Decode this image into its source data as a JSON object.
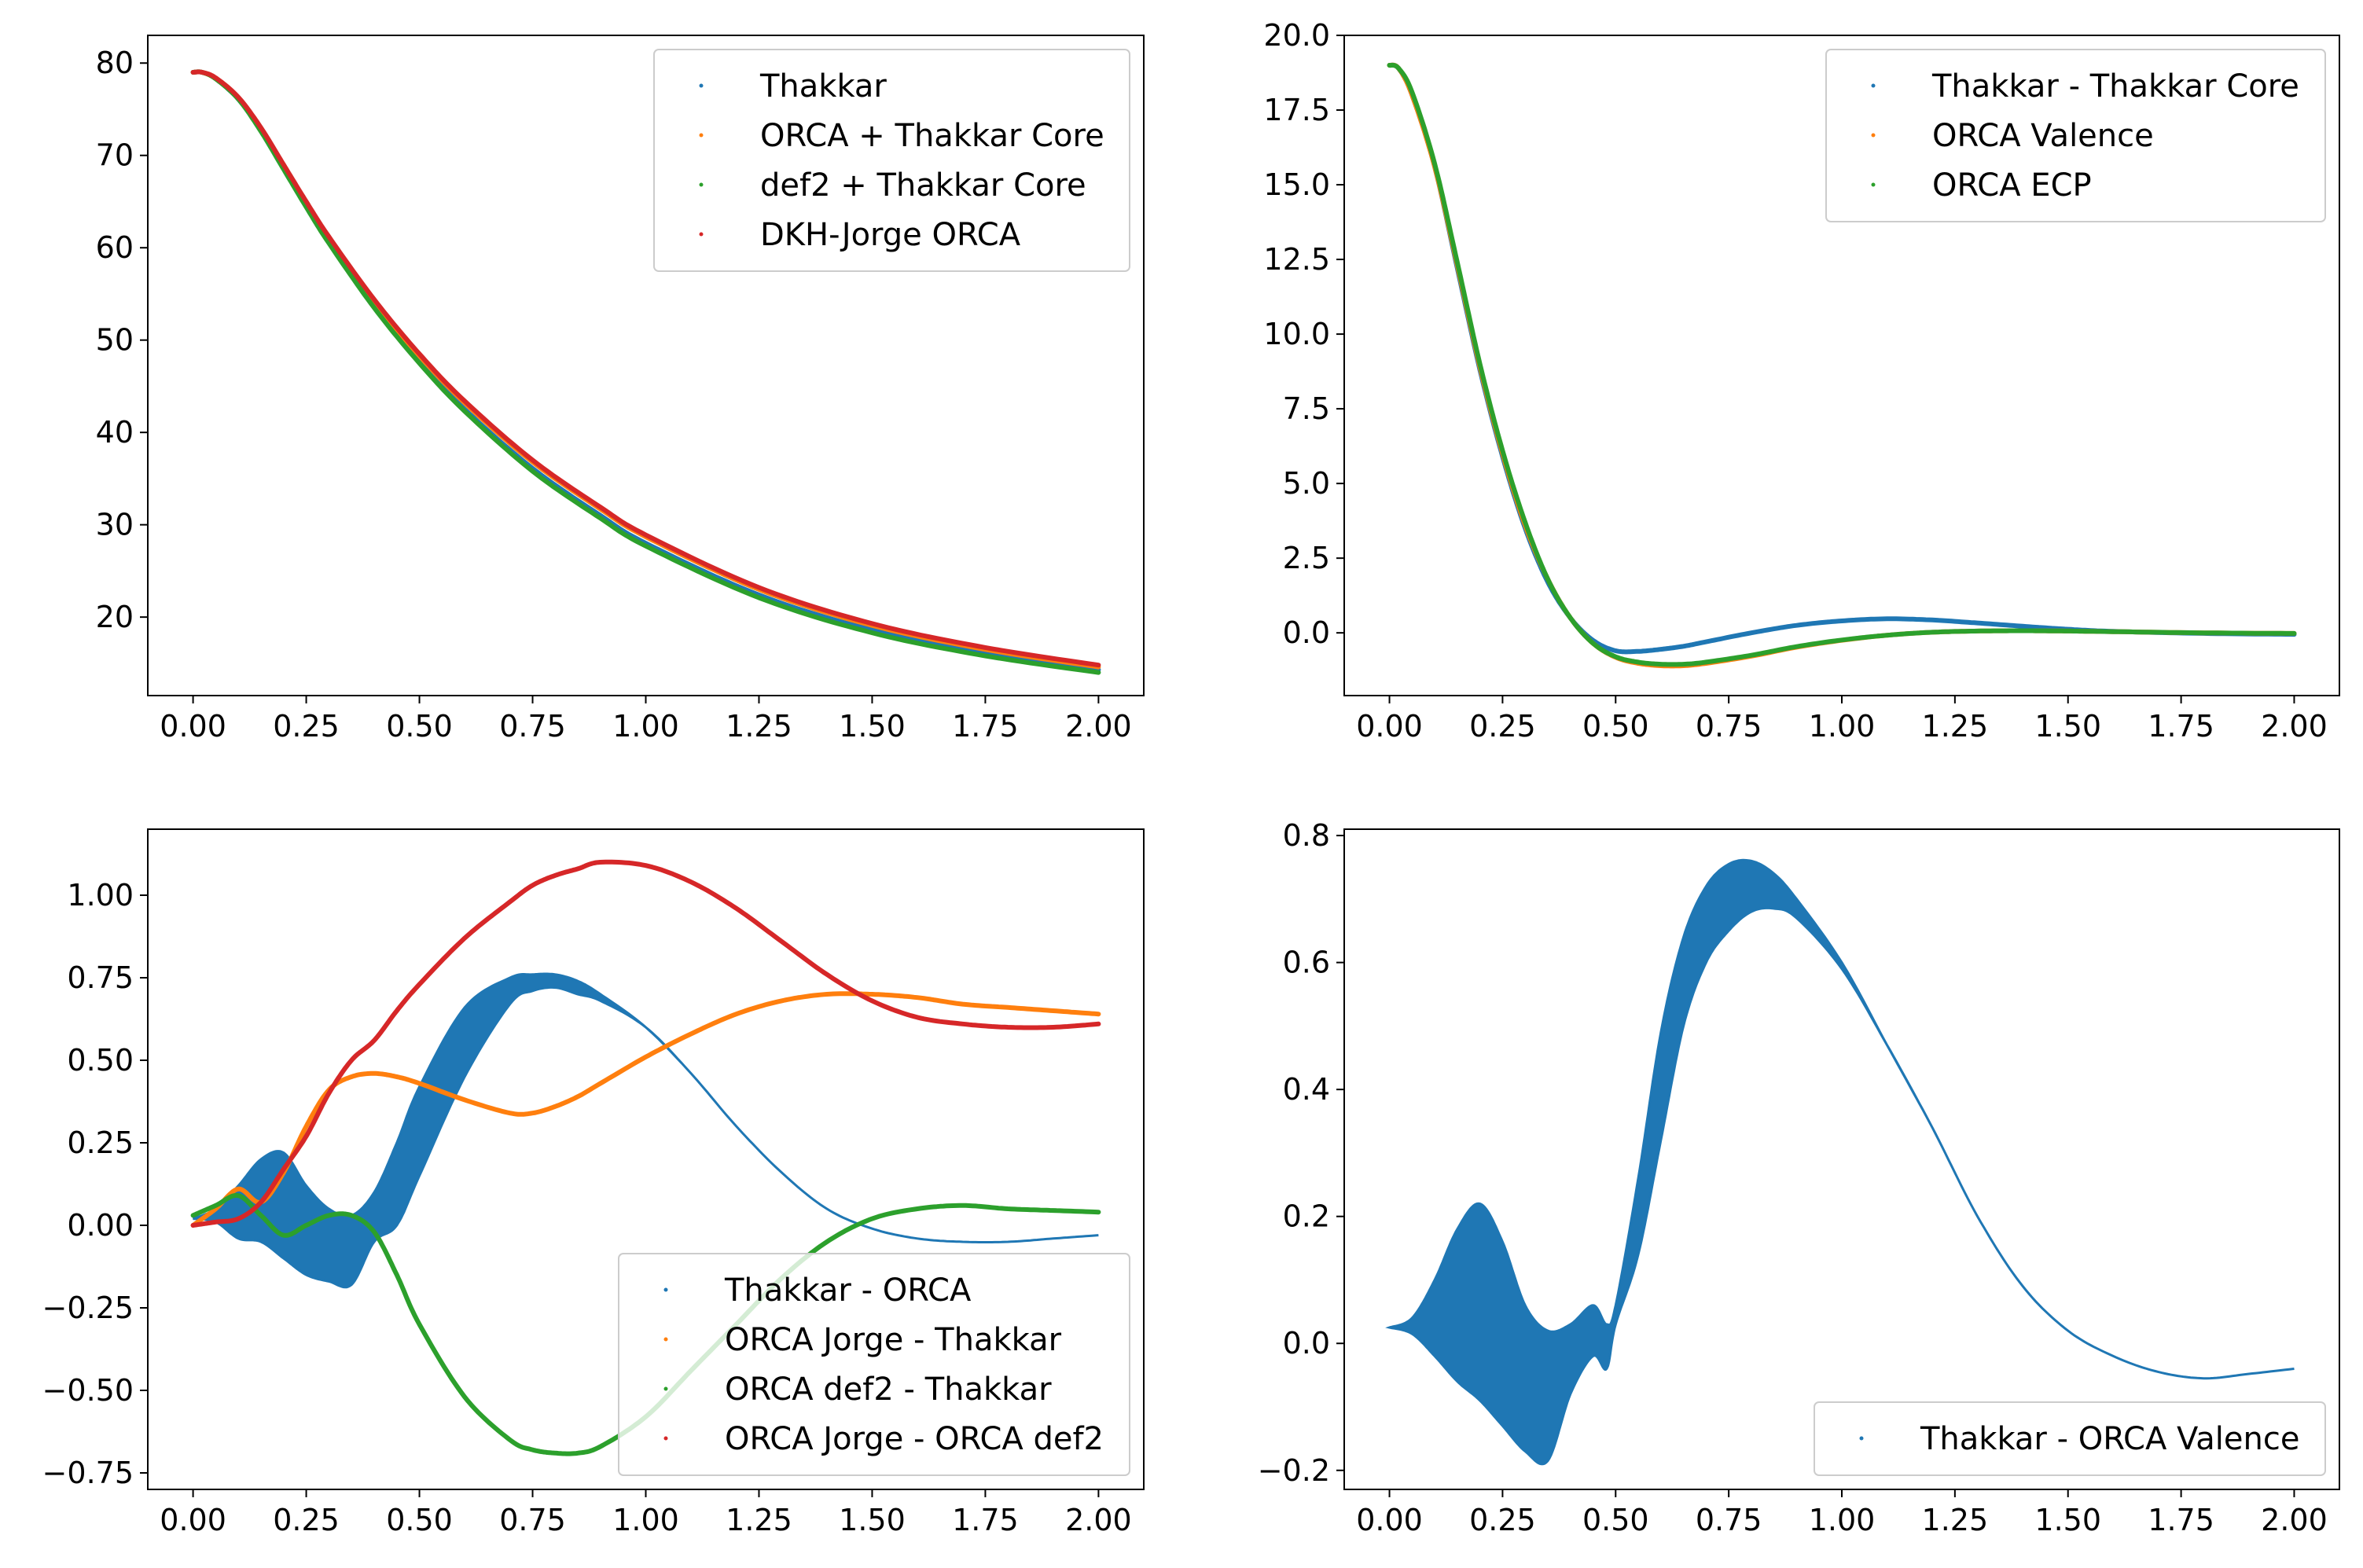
{
  "chart_data": [
    {
      "type": "scatter",
      "xlim": [
        -0.1,
        2.1
      ],
      "ylim": [
        11.5,
        83
      ],
      "xticks": [
        "0.00",
        "0.25",
        "0.50",
        "0.75",
        "1.00",
        "1.25",
        "1.50",
        "1.75",
        "2.00"
      ],
      "yticks": [
        20,
        30,
        40,
        50,
        60,
        70,
        80
      ],
      "ytick_labels": [
        "20",
        "30",
        "40",
        "50",
        "60",
        "70",
        "80"
      ],
      "legend_position": "upper right",
      "grid": false,
      "x": [
        0,
        0.02,
        0.05,
        0.1,
        0.15,
        0.2,
        0.25,
        0.3,
        0.4,
        0.5,
        0.6,
        0.75,
        0.9,
        1.0,
        1.25,
        1.5,
        1.75,
        2.0
      ],
      "series": [
        {
          "name": "Thakkar",
          "color": "#1f77b4",
          "values": [
            79,
            79,
            78.3,
            76.1,
            72.7,
            68.6,
            64.5,
            60.6,
            53.7,
            47.7,
            42.5,
            36.1,
            31.0,
            28.0,
            22.4,
            18.6,
            16.1,
            14.3
          ]
        },
        {
          "name": "ORCA + Thakkar Core",
          "color": "#ff7f0e",
          "values": [
            79,
            79,
            78.3,
            76.2,
            72.9,
            68.8,
            64.8,
            61.0,
            54.2,
            48.3,
            43.2,
            36.8,
            31.7,
            28.7,
            23.0,
            19.1,
            16.5,
            14.6
          ]
        },
        {
          "name": "def2 + Thakkar Core",
          "color": "#2ca02c",
          "values": [
            79,
            79,
            78.3,
            76.1,
            72.6,
            68.5,
            64.4,
            60.5,
            53.5,
            47.5,
            42.3,
            35.8,
            30.7,
            27.7,
            22.1,
            18.3,
            15.8,
            14.0
          ]
        },
        {
          "name": "DKH-Jorge ORCA",
          "color": "#d62728",
          "values": [
            79,
            79,
            78.4,
            76.3,
            73.0,
            69.0,
            65.0,
            61.2,
            54.4,
            48.5,
            43.4,
            37.0,
            31.9,
            28.9,
            23.2,
            19.3,
            16.7,
            14.8
          ]
        }
      ]
    },
    {
      "type": "scatter",
      "xlim": [
        -0.1,
        2.1
      ],
      "ylim": [
        -2.1,
        20
      ],
      "xticks": [
        "0.00",
        "0.25",
        "0.50",
        "0.75",
        "1.00",
        "1.25",
        "1.50",
        "1.75",
        "2.00"
      ],
      "yticks": [
        0,
        2.5,
        5,
        7.5,
        10,
        12.5,
        15,
        17.5,
        20
      ],
      "ytick_labels": [
        "0.0",
        "2.5",
        "5.0",
        "7.5",
        "10.0",
        "12.5",
        "15.0",
        "17.5",
        "20.0"
      ],
      "legend_position": "upper right",
      "grid": false,
      "x": [
        0,
        0.02,
        0.05,
        0.1,
        0.15,
        0.2,
        0.25,
        0.3,
        0.35,
        0.4,
        0.45,
        0.5,
        0.55,
        0.6,
        0.65,
        0.7,
        0.8,
        0.9,
        1.0,
        1.1,
        1.2,
        1.3,
        1.4,
        1.5,
        1.6,
        1.8,
        2.0
      ],
      "series": [
        {
          "name": "Thakkar - Thakkar Core",
          "color": "#1f77b4",
          "values": [
            19,
            18.9,
            18.0,
            15.6,
            12.2,
            8.8,
            5.9,
            3.5,
            1.7,
            0.5,
            -0.25,
            -0.6,
            -0.62,
            -0.55,
            -0.45,
            -0.3,
            0.0,
            0.25,
            0.4,
            0.47,
            0.43,
            0.33,
            0.22,
            0.12,
            0.05,
            -0.02,
            -0.05
          ]
        },
        {
          "name": "ORCA Valence",
          "color": "#ff7f0e",
          "values": [
            19,
            18.9,
            18.0,
            15.6,
            12.3,
            8.9,
            6.0,
            3.6,
            1.8,
            0.5,
            -0.35,
            -0.82,
            -1.02,
            -1.1,
            -1.1,
            -1.02,
            -0.78,
            -0.48,
            -0.25,
            -0.08,
            0.02,
            0.06,
            0.07,
            0.06,
            0.04,
            0.0,
            -0.02
          ]
        },
        {
          "name": "ORCA ECP",
          "color": "#2ca02c",
          "values": [
            19,
            18.9,
            18.1,
            15.7,
            12.4,
            9.0,
            6.1,
            3.7,
            1.8,
            0.5,
            -0.35,
            -0.8,
            -0.98,
            -1.05,
            -1.05,
            -0.98,
            -0.75,
            -0.46,
            -0.24,
            -0.08,
            0.02,
            0.06,
            0.07,
            0.06,
            0.04,
            0.0,
            -0.02
          ]
        }
      ]
    },
    {
      "type": "scatter",
      "xlim": [
        -0.1,
        2.1
      ],
      "ylim": [
        -0.8,
        1.2
      ],
      "xticks": [
        "0.00",
        "0.25",
        "0.50",
        "0.75",
        "1.00",
        "1.25",
        "1.50",
        "1.75",
        "2.00"
      ],
      "yticks": [
        -0.75,
        -0.5,
        -0.25,
        0,
        0.25,
        0.5,
        0.75,
        1.0
      ],
      "ytick_labels": [
        "−0.75",
        "−0.50",
        "−0.25",
        "0.00",
        "0.25",
        "0.50",
        "0.75",
        "1.00"
      ],
      "legend_position": "lower right",
      "grid": false,
      "x": [
        0,
        0.05,
        0.1,
        0.15,
        0.2,
        0.25,
        0.3,
        0.35,
        0.4,
        0.45,
        0.5,
        0.6,
        0.7,
        0.75,
        0.8,
        0.85,
        0.9,
        1.0,
        1.1,
        1.2,
        1.3,
        1.4,
        1.5,
        1.6,
        1.7,
        1.8,
        1.9,
        2.0
      ],
      "series": [
        {
          "name": "Thakkar - ORCA",
          "color": "#1f77b4",
          "band": true,
          "lower": [
            0.02,
            0.01,
            -0.04,
            -0.05,
            -0.1,
            -0.15,
            -0.17,
            -0.18,
            -0.05,
            0.0,
            0.15,
            0.45,
            0.67,
            0.71,
            0.72,
            0.7,
            0.68,
            0.6,
            0.46,
            0.3,
            0.16,
            0.05,
            -0.01,
            -0.04,
            -0.05,
            -0.05,
            -0.04,
            -0.03
          ],
          "upper": [
            0.02,
            0.05,
            0.12,
            0.2,
            0.22,
            0.12,
            0.05,
            0.03,
            0.1,
            0.25,
            0.42,
            0.66,
            0.75,
            0.76,
            0.76,
            0.74,
            0.7,
            0.6,
            0.46,
            0.3,
            0.16,
            0.05,
            -0.01,
            -0.04,
            -0.05,
            -0.05,
            -0.04,
            -0.03
          ]
        },
        {
          "name": "ORCA Jorge - Thakkar",
          "color": "#ff7f0e",
          "values": [
            0,
            0.05,
            0.11,
            0.07,
            0.16,
            0.3,
            0.41,
            0.45,
            0.46,
            0.45,
            0.43,
            0.38,
            0.34,
            0.34,
            0.36,
            0.39,
            0.43,
            0.51,
            0.58,
            0.64,
            0.68,
            0.7,
            0.7,
            0.69,
            0.67,
            0.66,
            0.65,
            0.64
          ]
        },
        {
          "name": "ORCA def2 - Thakkar",
          "color": "#2ca02c",
          "values": [
            0.03,
            0.06,
            0.09,
            0.03,
            -0.03,
            0.0,
            0.03,
            0.03,
            -0.02,
            -0.15,
            -0.3,
            -0.52,
            -0.65,
            -0.68,
            -0.69,
            -0.69,
            -0.67,
            -0.58,
            -0.44,
            -0.3,
            -0.16,
            -0.05,
            0.02,
            0.05,
            0.06,
            0.05,
            0.045,
            0.04
          ]
        },
        {
          "name": "ORCA Jorge - ORCA def2",
          "color": "#d62728",
          "values": [
            0,
            0.01,
            0.02,
            0.07,
            0.17,
            0.27,
            0.4,
            0.5,
            0.56,
            0.65,
            0.73,
            0.87,
            0.98,
            1.03,
            1.06,
            1.08,
            1.1,
            1.09,
            1.04,
            0.96,
            0.86,
            0.76,
            0.68,
            0.63,
            0.61,
            0.6,
            0.6,
            0.61
          ]
        }
      ]
    },
    {
      "type": "scatter",
      "xlim": [
        -0.1,
        2.1
      ],
      "ylim": [
        -0.23,
        0.81
      ],
      "xticks": [
        "0.00",
        "0.25",
        "0.50",
        "0.75",
        "1.00",
        "1.25",
        "1.50",
        "1.75",
        "2.00"
      ],
      "yticks": [
        -0.2,
        0,
        0.2,
        0.4,
        0.6,
        0.8
      ],
      "ytick_labels": [
        "−0.2",
        "0.0",
        "0.2",
        "0.4",
        "0.6",
        "0.8"
      ],
      "legend_position": "lower right",
      "grid": false,
      "x": [
        0,
        0.05,
        0.1,
        0.15,
        0.2,
        0.25,
        0.3,
        0.35,
        0.4,
        0.45,
        0.48,
        0.5,
        0.55,
        0.6,
        0.65,
        0.7,
        0.75,
        0.8,
        0.85,
        0.9,
        1.0,
        1.1,
        1.2,
        1.3,
        1.4,
        1.5,
        1.6,
        1.7,
        1.8,
        1.9,
        2.0
      ],
      "series": [
        {
          "name": "Thakkar - ORCA Valence",
          "color": "#1f77b4",
          "band": true,
          "lower": [
            0.025,
            0.015,
            -0.02,
            -0.06,
            -0.09,
            -0.13,
            -0.17,
            -0.185,
            -0.08,
            -0.02,
            -0.04,
            0.03,
            0.14,
            0.32,
            0.5,
            0.6,
            0.65,
            0.68,
            0.685,
            0.67,
            0.59,
            0.47,
            0.34,
            0.2,
            0.09,
            0.02,
            -0.02,
            -0.045,
            -0.055,
            -0.048,
            -0.04
          ],
          "upper": [
            0.025,
            0.04,
            0.1,
            0.18,
            0.22,
            0.16,
            0.06,
            0.02,
            0.03,
            0.06,
            0.03,
            0.06,
            0.26,
            0.49,
            0.64,
            0.72,
            0.755,
            0.76,
            0.74,
            0.7,
            0.6,
            0.47,
            0.34,
            0.2,
            0.09,
            0.02,
            -0.02,
            -0.045,
            -0.055,
            -0.048,
            -0.04
          ]
        }
      ]
    }
  ]
}
